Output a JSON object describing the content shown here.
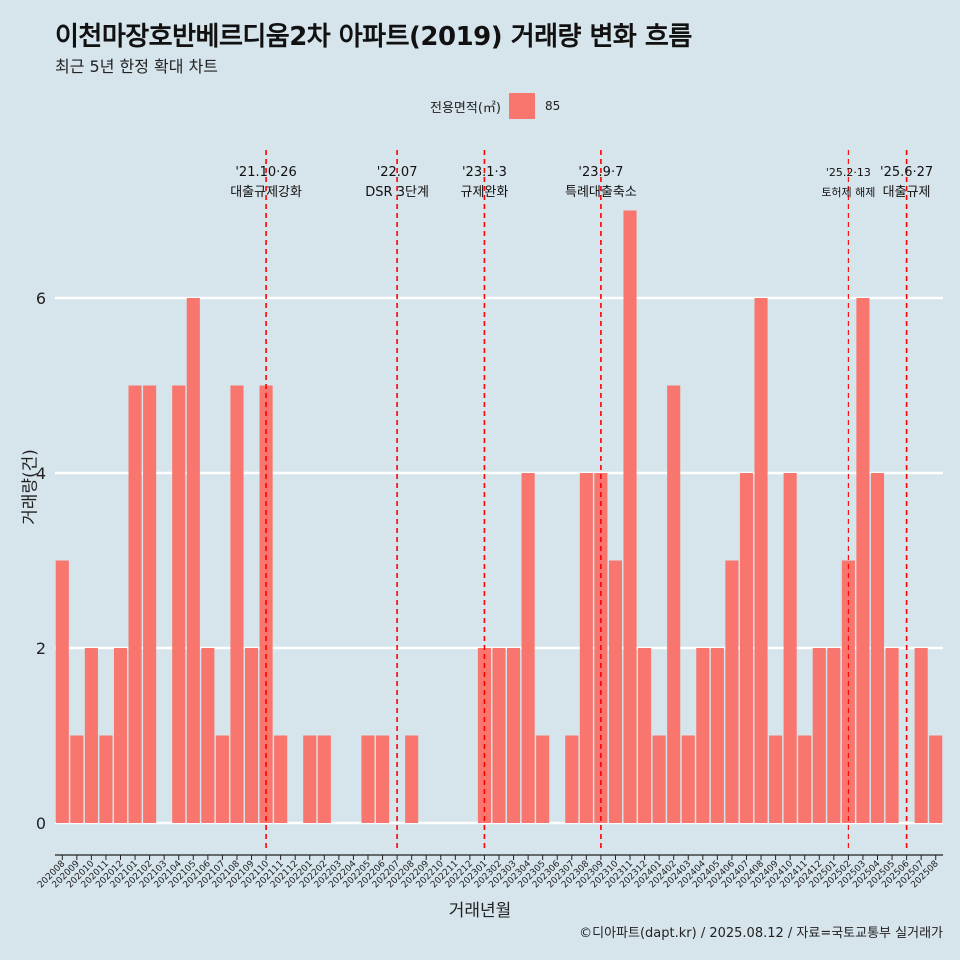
{
  "title": "이천마장호반베르디움2차 아파트(2019) 거래량 변화 흐름",
  "subtitle": "최근 5년 한정 확대 차트",
  "legend": {
    "title": "전용면적(㎡)",
    "label": "85"
  },
  "caption": "©디아파트(dapt.kr) / 2025.08.12 / 자료=국토교통부 실거래가",
  "colors": {
    "background": "#d6e4eb",
    "bar": "#f8766d",
    "gridline": "#ffffff",
    "event_line": "#ff0000"
  },
  "chart_data": {
    "type": "bar",
    "xlabel": "거래년월",
    "ylabel": "거래량(건)",
    "ylim": [
      0,
      7
    ],
    "yticks": [
      0,
      2,
      4,
      6
    ],
    "grid": true,
    "legend_position": "top",
    "categories": [
      "202008",
      "202009",
      "202010",
      "202011",
      "202012",
      "202101",
      "202102",
      "202103",
      "202104",
      "202105",
      "202106",
      "202107",
      "202108",
      "202109",
      "202110",
      "202111",
      "202112",
      "202201",
      "202202",
      "202203",
      "202204",
      "202205",
      "202206",
      "202207",
      "202208",
      "202209",
      "202210",
      "202211",
      "202212",
      "202301",
      "202302",
      "202303",
      "202304",
      "202305",
      "202306",
      "202307",
      "202308",
      "202309",
      "202310",
      "202311",
      "202312",
      "202401",
      "202402",
      "202403",
      "202404",
      "202405",
      "202406",
      "202407",
      "202408",
      "202409",
      "202410",
      "202411",
      "202412",
      "202501",
      "202502",
      "202503",
      "202504",
      "202505",
      "202506",
      "202507",
      "202508"
    ],
    "series": [
      {
        "name": "85",
        "values": [
          3,
          1,
          2,
          1,
          2,
          5,
          5,
          0,
          5,
          6,
          2,
          1,
          5,
          2,
          5,
          1,
          0,
          1,
          1,
          0,
          0,
          1,
          1,
          0,
          1,
          0,
          0,
          0,
          0,
          2,
          2,
          2,
          4,
          1,
          0,
          1,
          4,
          4,
          3,
          7,
          2,
          1,
          5,
          1,
          2,
          2,
          3,
          4,
          6,
          1,
          4,
          1,
          2,
          2,
          3,
          6,
          4,
          2,
          0,
          2,
          1
        ]
      }
    ],
    "annotations": [
      {
        "x": "202110",
        "date": "'21.10·26",
        "text": "대출규제강화",
        "small": false
      },
      {
        "x": "202207",
        "date": "'22.07",
        "text": "DSR 3단계",
        "small": false
      },
      {
        "x": "202301",
        "date": "'23.1·3",
        "text": "규제완화",
        "small": false
      },
      {
        "x": "202309",
        "date": "'23.9·7",
        "text": "특례대출축소",
        "small": false
      },
      {
        "x": "202502",
        "date": "'25.2·13",
        "text": "토허제 해제",
        "small": true
      },
      {
        "x": "202506",
        "date": "'25.6·27",
        "text": "대출규제",
        "small": false
      }
    ]
  }
}
